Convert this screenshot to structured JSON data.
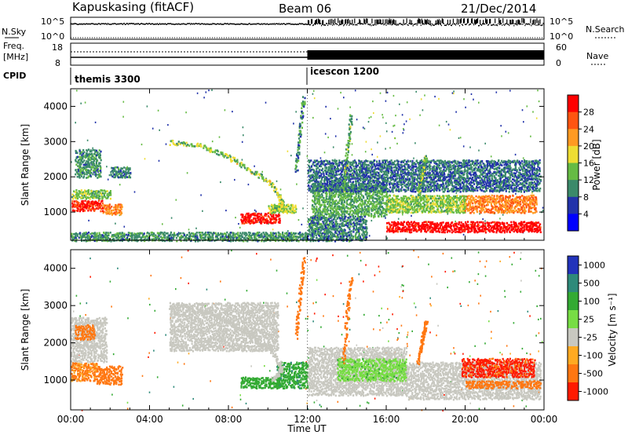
{
  "header": {
    "station": "Kapuskasing (fitACF)",
    "beam": "Beam 06",
    "date": "21/Dec/2014"
  },
  "top_panels": {
    "nsky_label": "N.Sky",
    "nsky_ticks": [
      "10^5",
      "10^0"
    ],
    "nsearch_label": "N.Search",
    "nsearch_ticks": [
      "10^5",
      "10^0"
    ],
    "freq_label_1": "Freq.",
    "freq_label_2": "[MHz]",
    "freq_ticks": [
      "18",
      "8"
    ],
    "nave_label": "Nave",
    "nave_ticks": [
      "60",
      "0"
    ],
    "cpid_label": "CPID",
    "modes": [
      {
        "name": "themis 3300",
        "start_hour": 0,
        "end_hour": 12
      },
      {
        "name": "icescon 1200",
        "start_hour": 12,
        "end_hour": 24
      }
    ]
  },
  "chart_data": [
    {
      "type": "heatmap",
      "title": "",
      "quantity": "Power",
      "xlabel": "Time UT",
      "ylabel": "Slant Range [km]",
      "xlim_hours": [
        0,
        24
      ],
      "ylim_km": [
        200,
        4500
      ],
      "x_ticks": [
        "00:00",
        "04:00",
        "08:00",
        "12:00",
        "16:00",
        "20:00",
        "00:00"
      ],
      "y_ticks": [
        1000,
        2000,
        3000,
        4000
      ],
      "colorbar": {
        "label": "Power [dB]",
        "ticks": [
          "4",
          "8",
          "12",
          "16",
          "20",
          "24",
          "28"
        ],
        "range": [
          0,
          30
        ],
        "colors": [
          "#0000ff",
          "#2233aa",
          "#3b8a6a",
          "#66bb44",
          "#eedd33",
          "#ff9a22",
          "#ff5511",
          "#ff0000"
        ]
      },
      "regions": [
        {
          "t0": 0.0,
          "t1": 1.6,
          "r0": 1050,
          "r1": 1350,
          "power": 27
        },
        {
          "t0": 1.6,
          "t1": 2.6,
          "r0": 950,
          "r1": 1250,
          "power": 22
        },
        {
          "t0": 0.0,
          "t1": 2.0,
          "r0": 1400,
          "r1": 1650,
          "power": 13
        },
        {
          "t0": 0.2,
          "t1": 1.5,
          "r0": 2000,
          "r1": 2800,
          "power": 10
        },
        {
          "t0": 2.0,
          "t1": 3.0,
          "r0": 2000,
          "r1": 2300,
          "power": 9
        },
        {
          "t0": 8.6,
          "t1": 10.6,
          "r0": 700,
          "r1": 1000,
          "power": 28
        },
        {
          "t0": 10.0,
          "t1": 11.4,
          "r0": 1000,
          "r1": 1250,
          "power": 15
        },
        {
          "t0": 12.2,
          "t1": 16.0,
          "r0": 900,
          "r1": 1800,
          "power": 12
        },
        {
          "t0": 16.0,
          "t1": 23.8,
          "r0": 450,
          "r1": 750,
          "power": 29
        },
        {
          "t0": 19.8,
          "t1": 23.6,
          "r0": 1000,
          "r1": 1500,
          "power": 22
        },
        {
          "t0": 16.0,
          "t1": 20.0,
          "r0": 1000,
          "r1": 1500,
          "power": 14
        },
        {
          "t0": 12.0,
          "t1": 23.8,
          "r0": 1600,
          "r1": 2500,
          "power": 8
        },
        {
          "t0": 0.0,
          "t1": 12.0,
          "r0": 200,
          "r1": 450,
          "power": 10
        },
        {
          "t0": 12.0,
          "t1": 15.0,
          "r0": 200,
          "r1": 900,
          "power": 9
        }
      ],
      "arcs": [
        {
          "t": [
            5.0,
            6.5,
            7.8,
            9.0,
            10.2,
            10.7,
            10.2
          ],
          "r": [
            3000,
            2900,
            2650,
            2250,
            1800,
            1300,
            1050
          ],
          "power": 14
        },
        {
          "t": [
            11.4,
            11.6,
            11.8
          ],
          "r": [
            2200,
            3300,
            4300
          ],
          "power": 10
        },
        {
          "t": [
            13.8,
            14.0,
            14.2
          ],
          "r": [
            1500,
            2800,
            3800
          ],
          "power": 12
        },
        {
          "t": [
            17.6,
            17.8,
            18.0
          ],
          "r": [
            1500,
            2100,
            2600
          ],
          "power": 12
        }
      ]
    },
    {
      "type": "heatmap",
      "title": "",
      "quantity": "Velocity",
      "xlabel": "Time UT",
      "ylabel": "Slant Range [km]",
      "xlim_hours": [
        0,
        24
      ],
      "ylim_km": [
        200,
        4500
      ],
      "x_ticks": [
        "00:00",
        "04:00",
        "08:00",
        "12:00",
        "16:00",
        "20:00",
        "00:00"
      ],
      "y_ticks": [
        1000,
        2000,
        3000,
        4000
      ],
      "colorbar": {
        "label": "Velocity [m s⁻¹]",
        "ticks": [
          "1000",
          "500",
          "100",
          "25",
          "-25",
          "-100",
          "-500",
          "-1000"
        ],
        "colors": [
          "#2233bb",
          "#2e8a7a",
          "#33aa33",
          "#77dd44",
          "#c8c8c0",
          "#ffaa22",
          "#ff7711",
          "#ff1a00"
        ]
      },
      "regions": [
        {
          "t0": 0.0,
          "t1": 1.3,
          "r0": 1000,
          "r1": 1500,
          "velocity": -120
        },
        {
          "t0": 1.3,
          "t1": 2.6,
          "r0": 900,
          "r1": 1400,
          "velocity": -160
        },
        {
          "t0": 0.0,
          "t1": 1.8,
          "r0": 1500,
          "r1": 2700,
          "velocity": 0
        },
        {
          "t0": 0.2,
          "t1": 1.2,
          "r0": 2100,
          "r1": 2500,
          "velocity": -300
        },
        {
          "t0": 5.0,
          "t1": 10.5,
          "r0": 1800,
          "r1": 3100,
          "velocity": 0
        },
        {
          "t0": 8.6,
          "t1": 10.6,
          "r0": 800,
          "r1": 1100,
          "velocity": 150
        },
        {
          "t0": 10.4,
          "t1": 12.0,
          "r0": 800,
          "r1": 1500,
          "velocity": 400
        },
        {
          "t0": 12.0,
          "t1": 17.0,
          "r0": 600,
          "r1": 1900,
          "velocity": 0
        },
        {
          "t0": 13.5,
          "t1": 17.0,
          "r0": 1000,
          "r1": 1600,
          "velocity": 80
        },
        {
          "t0": 17.0,
          "t1": 23.8,
          "r0": 500,
          "r1": 1500,
          "velocity": 0
        },
        {
          "t0": 19.8,
          "t1": 23.5,
          "r0": 1100,
          "r1": 1600,
          "velocity": -600
        },
        {
          "t0": 20.0,
          "t1": 23.8,
          "r0": 800,
          "r1": 1000,
          "velocity": -250
        }
      ],
      "arcs": [
        {
          "t": [
            5.0,
            6.5,
            7.8,
            9.0,
            10.2,
            10.7,
            10.2
          ],
          "r": [
            3000,
            2900,
            2650,
            2250,
            1800,
            1300,
            1050
          ],
          "velocity": 0
        },
        {
          "t": [
            11.4,
            11.6,
            11.8
          ],
          "r": [
            2200,
            3300,
            4300
          ],
          "velocity": -250
        },
        {
          "t": [
            13.8,
            14.0,
            14.2
          ],
          "r": [
            1500,
            2800,
            3800
          ],
          "velocity": -300
        },
        {
          "t": [
            17.6,
            17.8,
            18.0
          ],
          "r": [
            1500,
            2100,
            2600
          ],
          "velocity": -200
        }
      ]
    }
  ]
}
